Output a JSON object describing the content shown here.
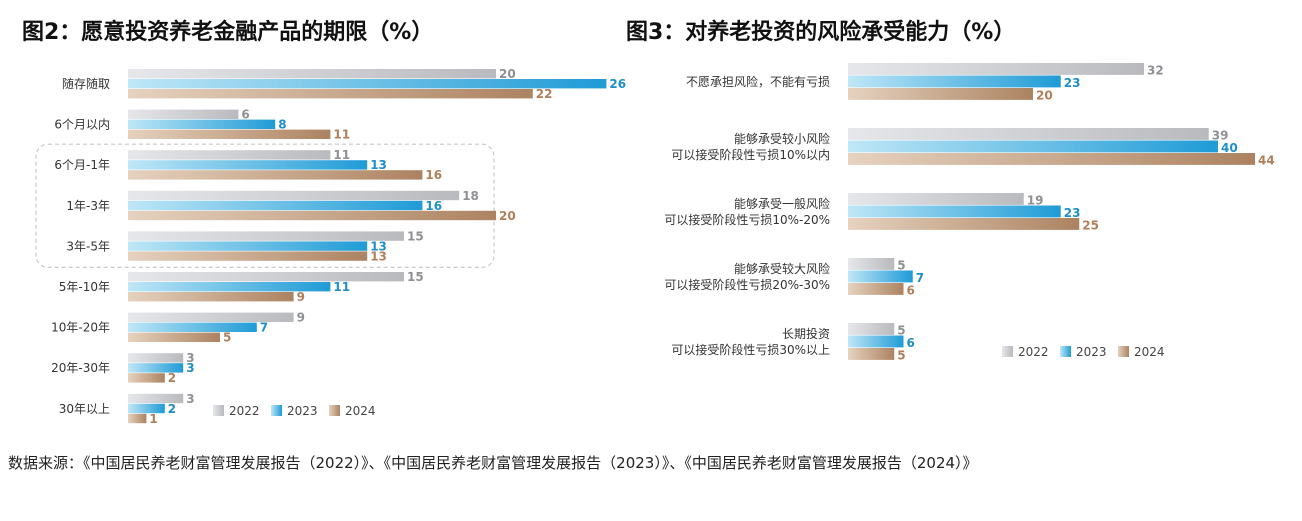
{
  "colors": {
    "2022": "#c3c4c8",
    "2023": "#2aa9df",
    "2024": "#b99474",
    "label2022": "#8f9094",
    "label2023": "#1f8fc8",
    "label2024": "#b07f5a"
  },
  "legend": [
    "2022",
    "2023",
    "2024"
  ],
  "chart_data": [
    {
      "type": "bar",
      "title": "图2：愿意投资养老金融产品的期限（%）",
      "categories": [
        "随存随取",
        "6个月以内",
        "6个月-1年",
        "1年-3年",
        "3年-5年",
        "5年-10年",
        "10年-20年",
        "20年-30年",
        "30年以上"
      ],
      "series": [
        {
          "name": "2022",
          "values": [
            20,
            6,
            11,
            18,
            15,
            15,
            9,
            3,
            3
          ]
        },
        {
          "name": "2023",
          "values": [
            26,
            8,
            13,
            16,
            13,
            11,
            7,
            3,
            2
          ]
        },
        {
          "name": "2024",
          "values": [
            22,
            11,
            16,
            20,
            13,
            9,
            5,
            2,
            1
          ]
        }
      ],
      "orientation": "horizontal",
      "legend_position": "bottom-right"
    },
    {
      "type": "bar",
      "title": "图3：对养老投资的风险承受能力（%）",
      "categories": [
        [
          "不愿承担风险，不能有亏损"
        ],
        [
          "能够承受较小风险",
          "可以接受阶段性亏损10%以内"
        ],
        [
          "能够承受一般风险",
          "可以接受阶段性亏损10%-20%"
        ],
        [
          "能够承受较大风险",
          "可以接受阶段性亏损20%-30%"
        ],
        [
          "长期投资",
          "可以接受阶段性亏损30%以上"
        ]
      ],
      "series": [
        {
          "name": "2022",
          "values": [
            32,
            39,
            19,
            5,
            5
          ]
        },
        {
          "name": "2023",
          "values": [
            23,
            40,
            23,
            7,
            6
          ]
        },
        {
          "name": "2024",
          "values": [
            20,
            44,
            25,
            6,
            5
          ]
        }
      ],
      "orientation": "horizontal",
      "legend_position": "bottom-right"
    }
  ],
  "source": "数据来源：《中国居民养老财富管理发展报告（2022）》、《中国居民养老财富管理发展报告（2023）》、《中国居民养老财富管理发展报告（2024）》"
}
